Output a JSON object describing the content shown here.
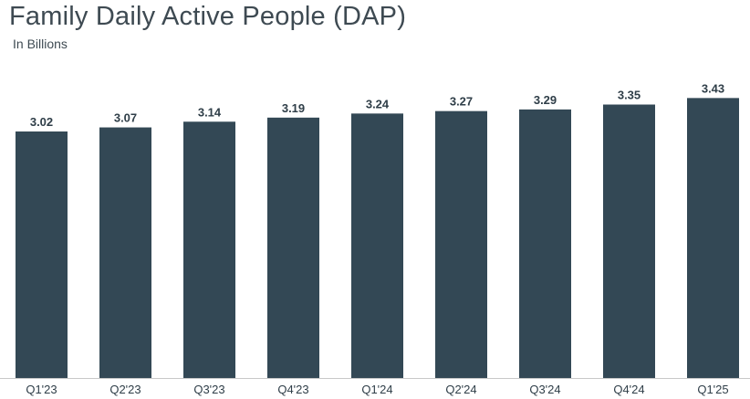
{
  "chart_data": {
    "type": "bar",
    "title": "Family Daily Active People (DAP)",
    "subtitle": "In Billions",
    "categories": [
      "Q1'23",
      "Q2'23",
      "Q3'23",
      "Q4'23",
      "Q1'24",
      "Q2'24",
      "Q3'24",
      "Q4'24",
      "Q1'25"
    ],
    "values": [
      3.02,
      3.07,
      3.14,
      3.19,
      3.24,
      3.27,
      3.29,
      3.35,
      3.43
    ],
    "value_labels": [
      "3.02",
      "3.07",
      "3.14",
      "3.19",
      "3.24",
      "3.27",
      "3.29",
      "3.35",
      "3.43"
    ],
    "bar_color": "#334855",
    "grid": false,
    "legend": "none"
  }
}
